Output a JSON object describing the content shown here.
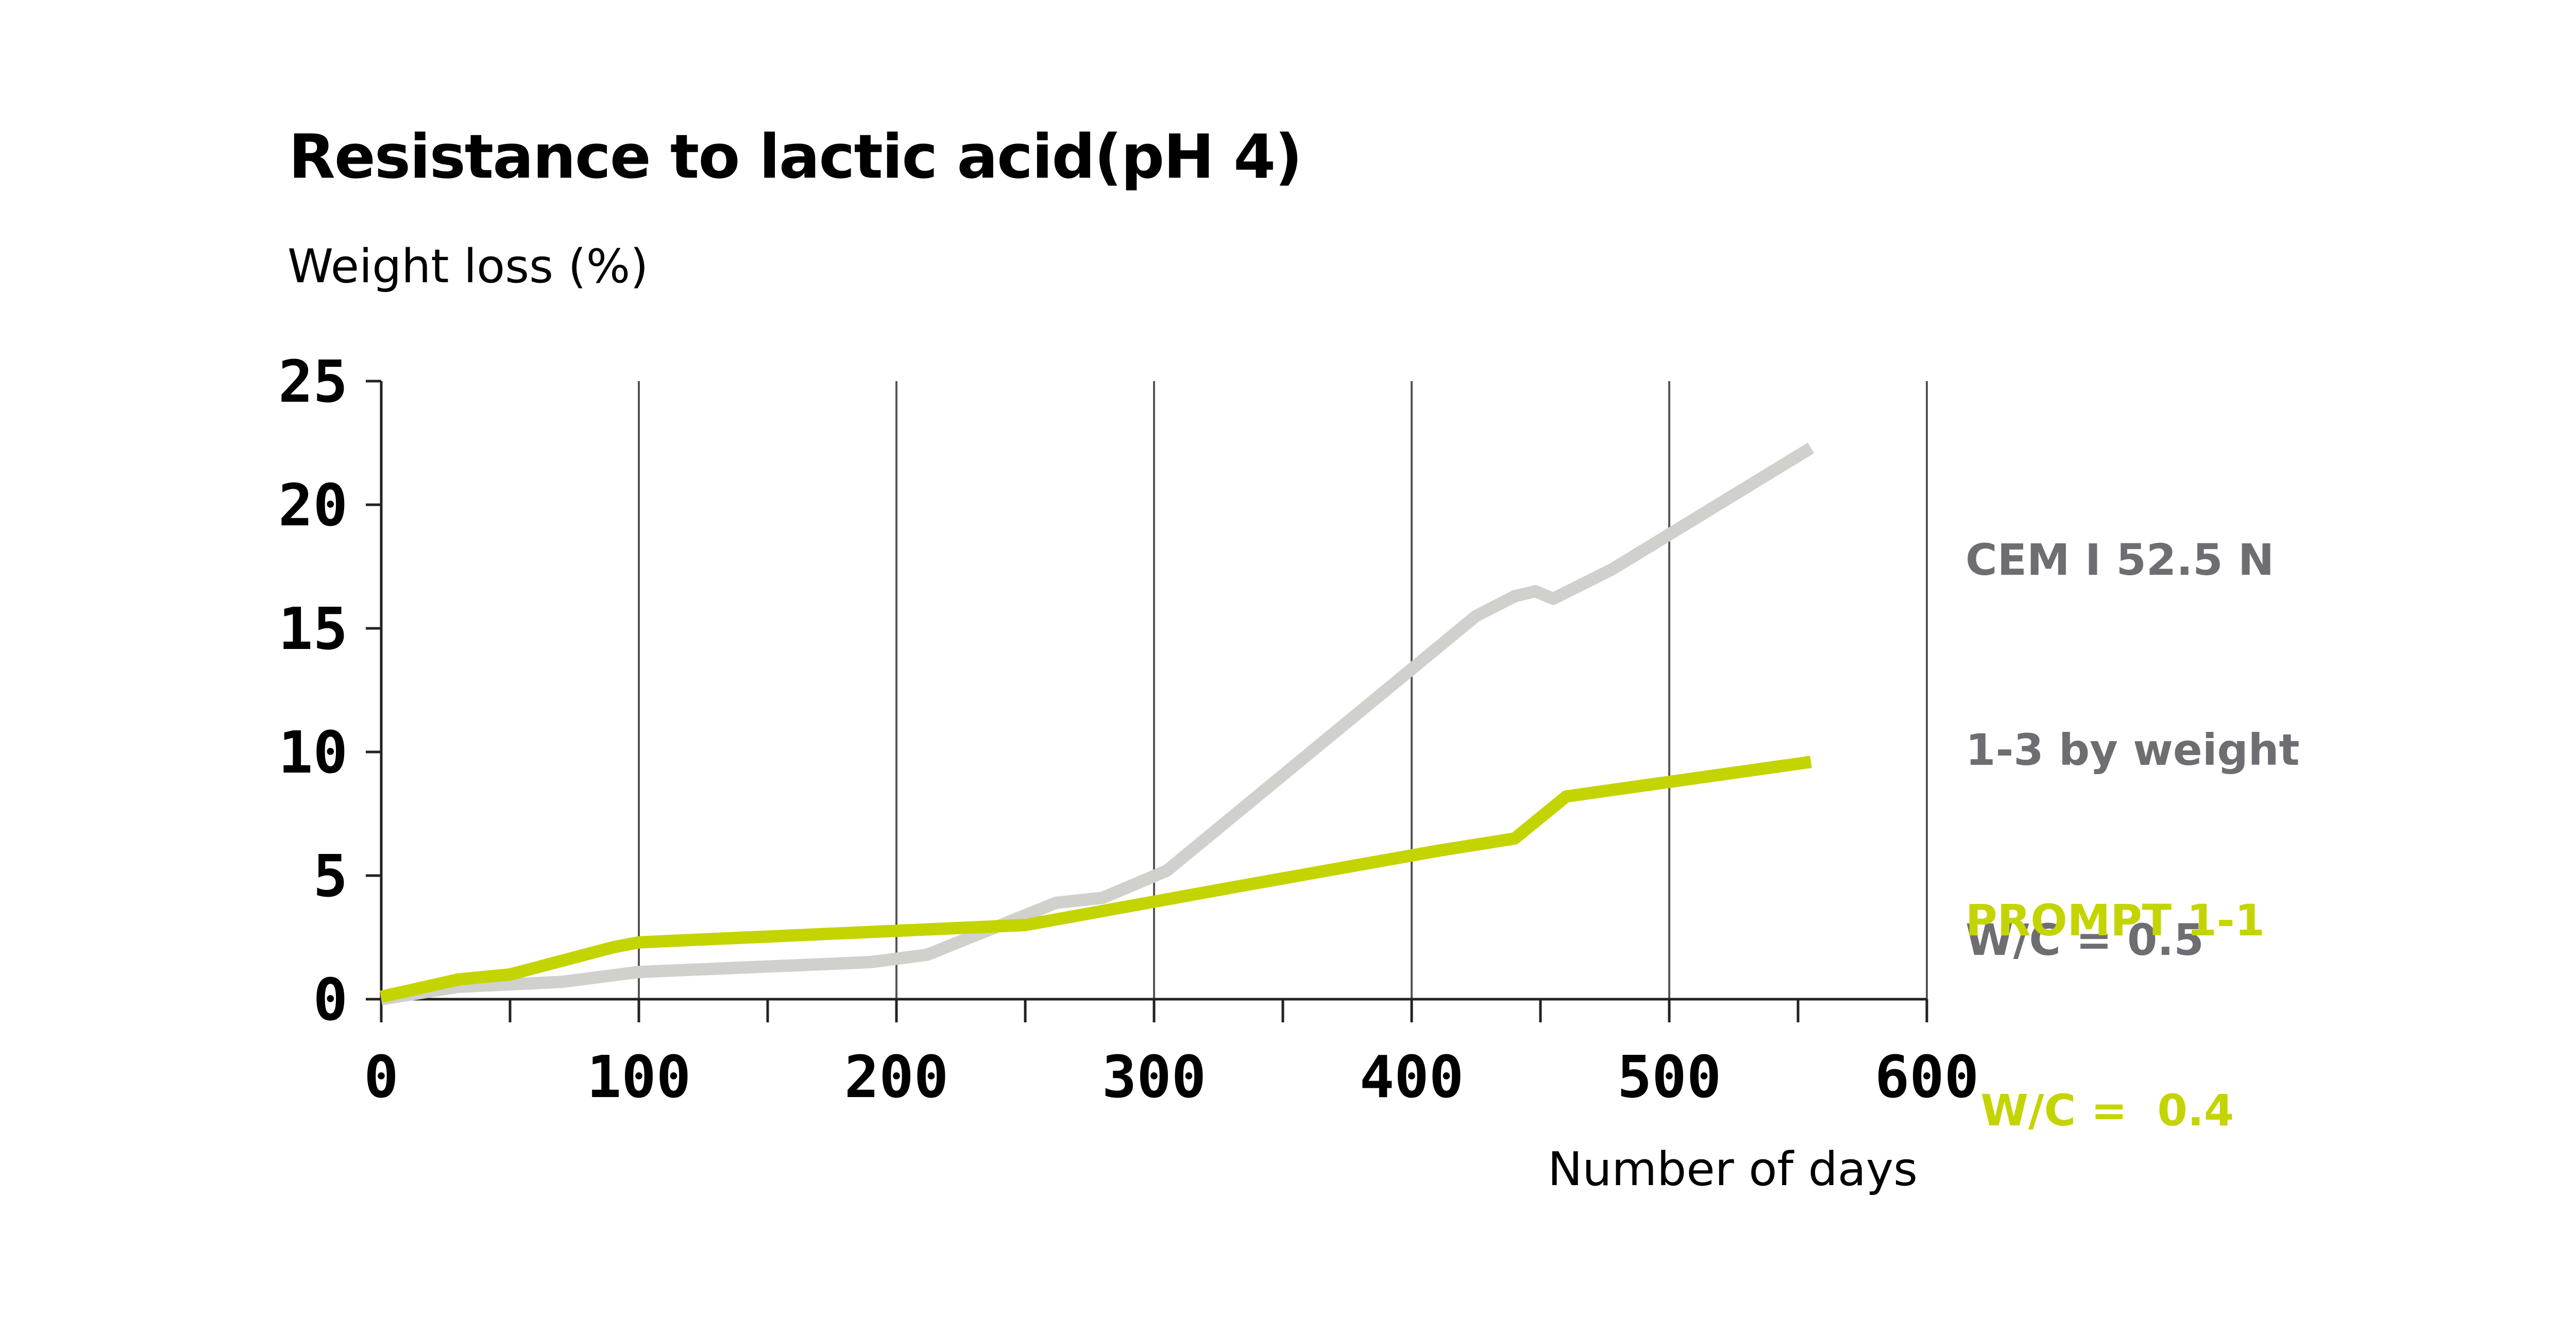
{
  "chart_data": {
    "type": "line",
    "title": "Resistance to lactic acid(pH 4)",
    "ylabel": "Weight loss (%)",
    "xlabel": "Number of days",
    "xlim": [
      0,
      600
    ],
    "ylim": [
      0,
      25
    ],
    "x_ticks": [
      0,
      100,
      200,
      300,
      400,
      500,
      600
    ],
    "y_ticks": [
      0,
      5,
      10,
      15,
      20,
      25
    ],
    "grid": "vertical",
    "legend_position": "right",
    "series": [
      {
        "legend_lines": [
          "CEM I 52.5 N",
          "1-3 by weight",
          "W/C = 0.5"
        ],
        "color": "#d0d0cc",
        "label_color": "#6e6e72",
        "points": [
          [
            0,
            0
          ],
          [
            30,
            0.5
          ],
          [
            50,
            0.6
          ],
          [
            70,
            0.7
          ],
          [
            100,
            1.1
          ],
          [
            190,
            1.5
          ],
          [
            212,
            1.8
          ],
          [
            262,
            3.9
          ],
          [
            280,
            4.1
          ],
          [
            305,
            5.2
          ],
          [
            425,
            15.5
          ],
          [
            440,
            16.3
          ],
          [
            448,
            16.5
          ],
          [
            455,
            16.2
          ],
          [
            478,
            17.4
          ],
          [
            555,
            22.3
          ]
        ]
      },
      {
        "legend_lines": [
          "PROMPT 1-1",
          " W/C =  0.4"
        ],
        "color": "#c4d400",
        "label_color": "#c4d400",
        "points": [
          [
            0,
            0.1
          ],
          [
            30,
            0.8
          ],
          [
            50,
            1.0
          ],
          [
            90,
            2.1
          ],
          [
            100,
            2.3
          ],
          [
            250,
            3.0
          ],
          [
            340,
            4.7
          ],
          [
            410,
            6.0
          ],
          [
            440,
            6.5
          ],
          [
            460,
            8.2
          ],
          [
            555,
            9.6
          ]
        ]
      }
    ]
  }
}
